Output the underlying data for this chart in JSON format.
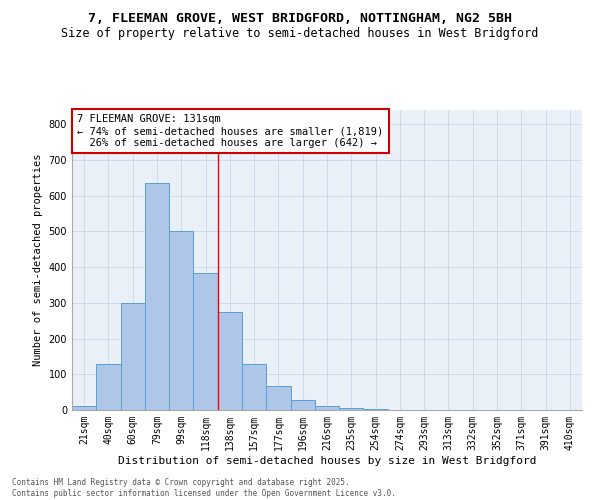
{
  "title1": "7, FLEEMAN GROVE, WEST BRIDGFORD, NOTTINGHAM, NG2 5BH",
  "title2": "Size of property relative to semi-detached houses in West Bridgford",
  "xlabel": "Distribution of semi-detached houses by size in West Bridgford",
  "ylabel": "Number of semi-detached properties",
  "categories": [
    "21sqm",
    "40sqm",
    "60sqm",
    "79sqm",
    "99sqm",
    "118sqm",
    "138sqm",
    "157sqm",
    "177sqm",
    "196sqm",
    "216sqm",
    "235sqm",
    "254sqm",
    "274sqm",
    "293sqm",
    "313sqm",
    "332sqm",
    "352sqm",
    "371sqm",
    "391sqm",
    "410sqm"
  ],
  "values": [
    10,
    130,
    300,
    635,
    500,
    383,
    275,
    130,
    68,
    28,
    12,
    6,
    2,
    0,
    0,
    0,
    0,
    0,
    0,
    0,
    0
  ],
  "bar_color": "#aec6e8",
  "bar_edge_color": "#5a9fd4",
  "red_line_x": 5.5,
  "property_label": "7 FLEEMAN GROVE: 131sqm",
  "pct_smaller": 74,
  "n_smaller": 1819,
  "pct_larger": 26,
  "n_larger": 642,
  "annotation_box_color": "#cc0000",
  "ylim": [
    0,
    840
  ],
  "yticks": [
    0,
    100,
    200,
    300,
    400,
    500,
    600,
    700,
    800
  ],
  "grid_color": "#c8d8e8",
  "bg_color": "#eaf0f8",
  "footnote": "Contains HM Land Registry data © Crown copyright and database right 2025.\nContains public sector information licensed under the Open Government Licence v3.0.",
  "title1_fontsize": 9.5,
  "title2_fontsize": 8.5,
  "xlabel_fontsize": 8,
  "ylabel_fontsize": 7.5,
  "tick_fontsize": 7,
  "annotation_fontsize": 7.5,
  "footnote_fontsize": 5.5
}
